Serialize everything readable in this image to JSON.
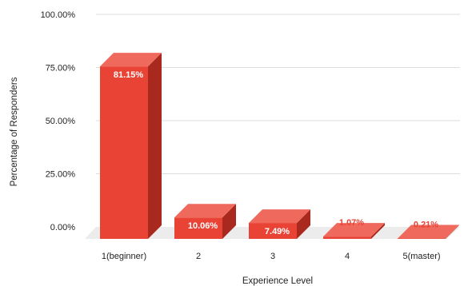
{
  "chart_data": {
    "type": "bar",
    "style": "3d",
    "categories": [
      "1(beginner)",
      "2",
      "3",
      "4",
      "5(master)"
    ],
    "values": [
      81.15,
      10.06,
      7.49,
      1.07,
      0.21
    ],
    "data_labels": [
      "81.15%",
      "10.06%",
      "7.49%",
      "1.07%",
      "0.21%"
    ],
    "xlabel": "Experience Level",
    "ylabel": "Percentage of Responders",
    "ylim": [
      0,
      100
    ],
    "yticks": [
      0,
      25,
      50,
      75,
      100
    ],
    "ytick_labels": [
      "0.00%",
      "25.00%",
      "50.00%",
      "75.00%",
      "100.00%"
    ],
    "grid": true,
    "legend": "none",
    "colors": {
      "bar_front": "#e94335",
      "bar_top": "#ef6a5d",
      "bar_side": "#a9291f",
      "floor": "#ececec",
      "grid": "#dddddd",
      "label_inside": "#ffffff",
      "label_outside": "#e94335"
    }
  }
}
